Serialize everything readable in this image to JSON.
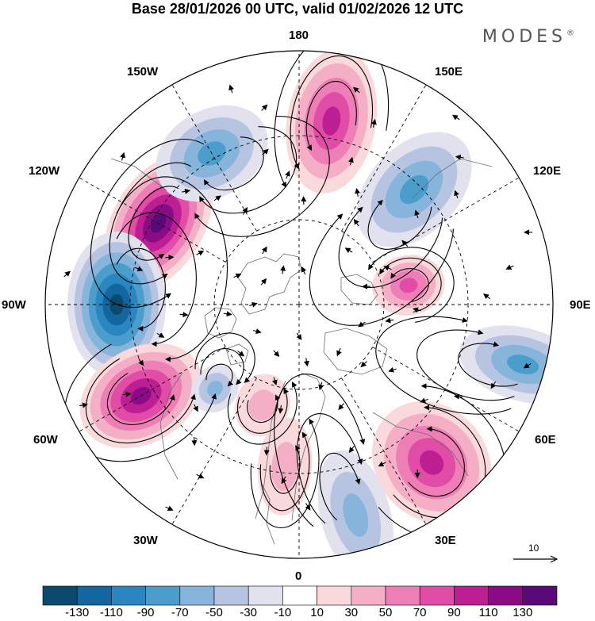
{
  "title": "Base 28/01/2026 00 UTC, valid 01/02/2026 12 UTC",
  "brand": {
    "name": "MODES",
    "mark": "®"
  },
  "longitude_labels": {
    "top": "180",
    "bottom": "0",
    "left": "90W",
    "right": "90E",
    "upper_left_150": "150W",
    "upper_left_120": "120W",
    "upper_right_150": "150E",
    "upper_right_120": "120E",
    "lower_left_60": "60W",
    "lower_left_30": "30W",
    "lower_right_60": "60E",
    "lower_right_30": "30E"
  },
  "reference_vector": {
    "label": "10"
  },
  "colorbar": {
    "tick_labels": [
      "-130",
      "-110",
      "-90",
      "-70",
      "-50",
      "-30",
      "-10",
      "10",
      "30",
      "50",
      "70",
      "90",
      "110",
      "130"
    ],
    "colors": [
      "#0b4a6f",
      "#1366a0",
      "#2a86c0",
      "#4b9dcc",
      "#86b4da",
      "#b6c4e2",
      "#e2e1ee",
      "#ffffff",
      "#f9d9dc",
      "#f4afc6",
      "#ee7fb6",
      "#e14ca7",
      "#bd1e94",
      "#8b0b87",
      "#5a0a78"
    ]
  },
  "anomaly_centers": [
    {
      "lon_label": "120W",
      "value": 130
    },
    {
      "lon_label": "90W",
      "value": -130
    },
    {
      "lon_label": "60W",
      "value": 110
    },
    {
      "lon_label": "150W",
      "value": -70
    },
    {
      "lon_label": "170E",
      "value": 100
    },
    {
      "lon_label": "135E",
      "value": -80
    },
    {
      "lon_label": "100E",
      "value": 80
    },
    {
      "lon_label": "75E",
      "value": -70
    },
    {
      "lon_label": "40E",
      "value": 90
    },
    {
      "lon_label": "15E",
      "value": -50
    },
    {
      "lon_label": "5W",
      "value": 30
    },
    {
      "lon_label": "20W",
      "value": 40
    },
    {
      "lon_label": "45W",
      "value": -50
    }
  ]
}
